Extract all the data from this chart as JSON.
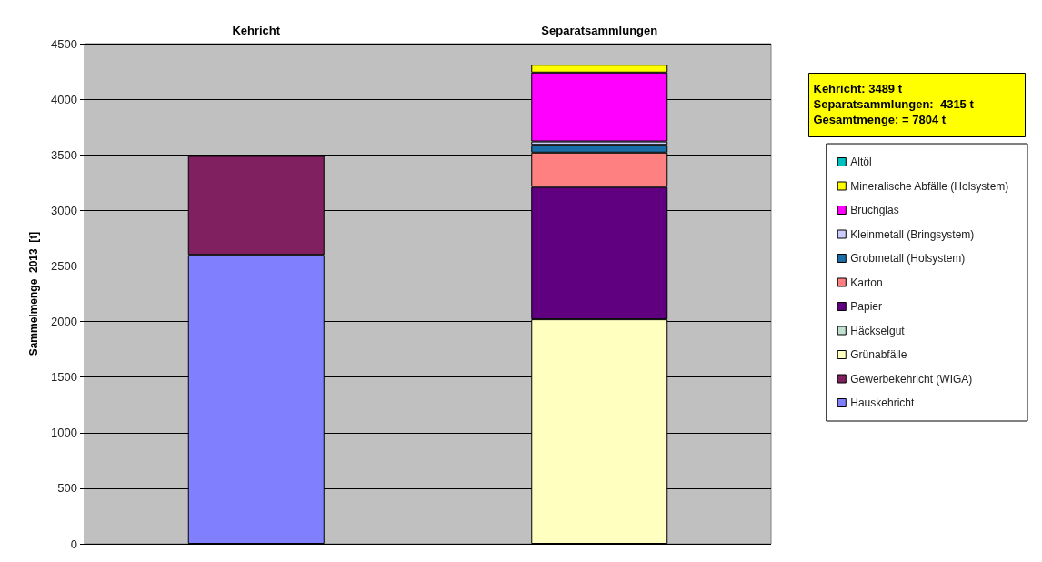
{
  "chart_data": {
    "type": "bar",
    "stacked": true,
    "categories": [
      "Kehricht",
      "Separatsammlungen"
    ],
    "ylabel": "Sammelmenge  2013  [t]",
    "ylim": [
      0,
      4500
    ],
    "yticks": [
      0,
      500,
      1000,
      1500,
      2000,
      2500,
      3000,
      3500,
      4000,
      4500
    ],
    "grid": "y",
    "legend": "right",
    "annotations": [
      "Kehricht: 3489 t",
      "Separatsammlungen:  4315 t",
      "Gesamtmenge: = 7804 t"
    ],
    "series": [
      {
        "name": "Hauskehricht",
        "color": "#8080ff",
        "values": [
          2600,
          null
        ]
      },
      {
        "name": "Gewerbekehricht (WIGA)",
        "color": "#802060",
        "values": [
          890,
          null
        ]
      },
      {
        "name": "Grünabfälle",
        "color": "#ffffc0",
        "values": [
          null,
          2020
        ]
      },
      {
        "name": "Häckselgut",
        "color": "#c0e0d0",
        "values": [
          null,
          0
        ]
      },
      {
        "name": "Papier",
        "color": "#600080",
        "values": [
          null,
          1190
        ]
      },
      {
        "name": "Karton",
        "color": "#ff8080",
        "values": [
          null,
          310
        ]
      },
      {
        "name": "Grobmetall (Holsystem)",
        "color": "#1a6ea8",
        "values": [
          null,
          70
        ]
      },
      {
        "name": "Kleinmetall (Bringsystem)",
        "color": "#ccccff",
        "values": [
          null,
          30
        ]
      },
      {
        "name": "Bruchglas",
        "color": "#ff00ff",
        "values": [
          null,
          620
        ]
      },
      {
        "name": "Mineralische Abfälle (Holsystem)",
        "color": "#ffff00",
        "values": [
          null,
          70
        ]
      },
      {
        "name": "Altöl",
        "color": "#00c0c0",
        "values": [
          null,
          0
        ]
      }
    ]
  }
}
